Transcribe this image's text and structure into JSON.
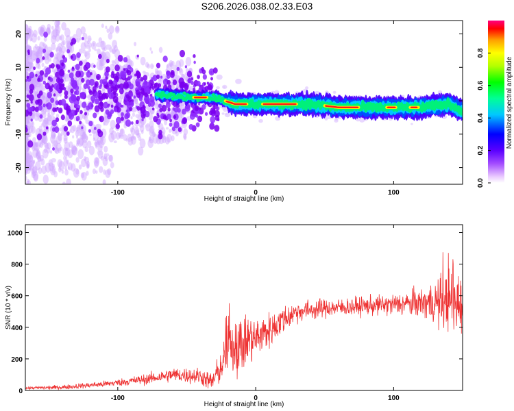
{
  "title": "S206.2026.038.02.33.E03",
  "chart_data": [
    {
      "type": "heatmap",
      "xlabel": "Height of straight line (km)",
      "ylabel": "Frequency (Hz)",
      "xlim": [
        -167,
        150
      ],
      "ylim": [
        -25,
        24
      ],
      "x_ticks": [
        -100,
        0,
        100
      ],
      "y_ticks": [
        -20,
        -10,
        0,
        10,
        20
      ],
      "colorbar": {
        "label": "Normalized spectral amplitude",
        "range": [
          0,
          1
        ],
        "ticks": [
          "0.0",
          "0.2",
          "0.4",
          "0.6",
          "0.8"
        ]
      },
      "ridge": {
        "note": "dominant frequency ridge",
        "x": [
          -70,
          -50,
          -30,
          -15,
          0,
          20,
          40,
          60,
          80,
          100,
          120,
          140,
          150
        ],
        "y": [
          2,
          1,
          1,
          -1,
          -1,
          -1,
          -1,
          -2,
          -2,
          -2,
          -2,
          -1,
          -3
        ]
      }
    },
    {
      "type": "line",
      "xlabel": "Height of straight line (km)",
      "ylabel": "SNR (10 * v/v)",
      "xlim": [
        -167,
        150
      ],
      "ylim": [
        0,
        1050
      ],
      "x_ticks": [
        -100,
        0,
        100
      ],
      "y_ticks": [
        0,
        200,
        400,
        600,
        800,
        1000
      ],
      "series_color": "#ee3333",
      "trend": {
        "x": [
          -167,
          -140,
          -110,
          -80,
          -60,
          -40,
          -32,
          -25,
          -20,
          -15,
          -10,
          -5,
          0,
          5,
          10,
          20,
          30,
          50,
          70,
          90,
          110,
          130,
          150
        ],
        "y": [
          15,
          20,
          40,
          70,
          100,
          90,
          50,
          150,
          250,
          300,
          280,
          330,
          330,
          360,
          380,
          450,
          500,
          520,
          530,
          540,
          550,
          560,
          560
        ]
      },
      "spread": {
        "x": [
          -167,
          -100,
          -60,
          -35,
          -25,
          -15,
          -5,
          10,
          30,
          60,
          90,
          120,
          140,
          150
        ],
        "y": [
          8,
          20,
          40,
          50,
          90,
          180,
          140,
          100,
          60,
          50,
          55,
          80,
          180,
          160
        ]
      }
    }
  ]
}
